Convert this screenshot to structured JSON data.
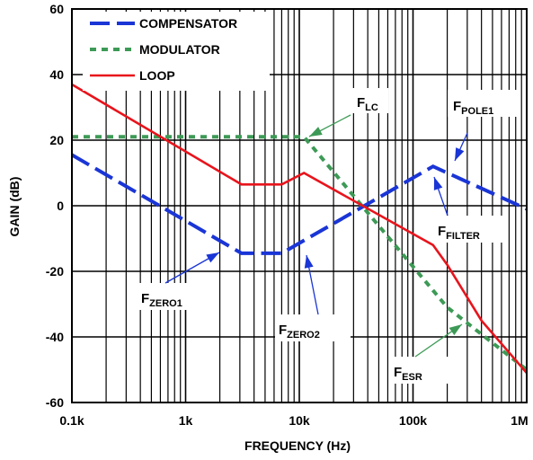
{
  "chart_data": {
    "type": "line",
    "xlabel": "FREQUENCY (Hz)",
    "ylabel": "GAIN (dB)",
    "x_scale": "log",
    "xlim": [
      100,
      1000000
    ],
    "ylim": [
      -60,
      60
    ],
    "grid": true,
    "legend_position": "top-left",
    "x_ticks": [
      {
        "value": 100,
        "label": "0.1k"
      },
      {
        "value": 1000,
        "label": "1k"
      },
      {
        "value": 10000,
        "label": "10k"
      },
      {
        "value": 100000,
        "label": "100k"
      },
      {
        "value": 1000000,
        "label": "1M"
      }
    ],
    "y_ticks": [
      {
        "value": 60,
        "label": "60"
      },
      {
        "value": 40,
        "label": "40"
      },
      {
        "value": 20,
        "label": "20"
      },
      {
        "value": 0,
        "label": "0"
      },
      {
        "value": -20,
        "label": "-20"
      },
      {
        "value": -40,
        "label": "-40"
      },
      {
        "value": -60,
        "label": "-60"
      }
    ],
    "series": [
      {
        "name": "COMPENSATOR",
        "color": "#1a35d6",
        "style": "dashed",
        "x": [
          100,
          3100,
          7000,
          150000,
          1000000
        ],
        "y": [
          15.5,
          -14.5,
          -14.5,
          12,
          -1
        ]
      },
      {
        "name": "MODULATOR",
        "color": "#3d9a56",
        "style": "dotted",
        "x": [
          100,
          11000,
          200000,
          1000000
        ],
        "y": [
          21,
          21,
          -31,
          -50
        ]
      },
      {
        "name": "LOOP",
        "color": "#e8141c",
        "style": "solid",
        "x": [
          100,
          3100,
          7000,
          11000,
          150000,
          200000,
          400000,
          1000000
        ],
        "y": [
          37,
          6.5,
          6.5,
          10,
          -12,
          -18,
          -35,
          -51
        ]
      }
    ],
    "annotations": [
      {
        "main": "F",
        "sub": "LC",
        "arrow_color": "#3d9a56"
      },
      {
        "main": "F",
        "sub": "POLE1",
        "arrow_color": "#1a35d6"
      },
      {
        "main": "F",
        "sub": "FILTER",
        "arrow_color": "#1a35d6"
      },
      {
        "main": "F",
        "sub": "ZERO1",
        "arrow_color": "#1a35d6"
      },
      {
        "main": "F",
        "sub": "ZERO2",
        "arrow_color": "#1a35d6"
      },
      {
        "main": "F",
        "sub": "ESR",
        "arrow_color": "#3d9a56"
      }
    ]
  }
}
